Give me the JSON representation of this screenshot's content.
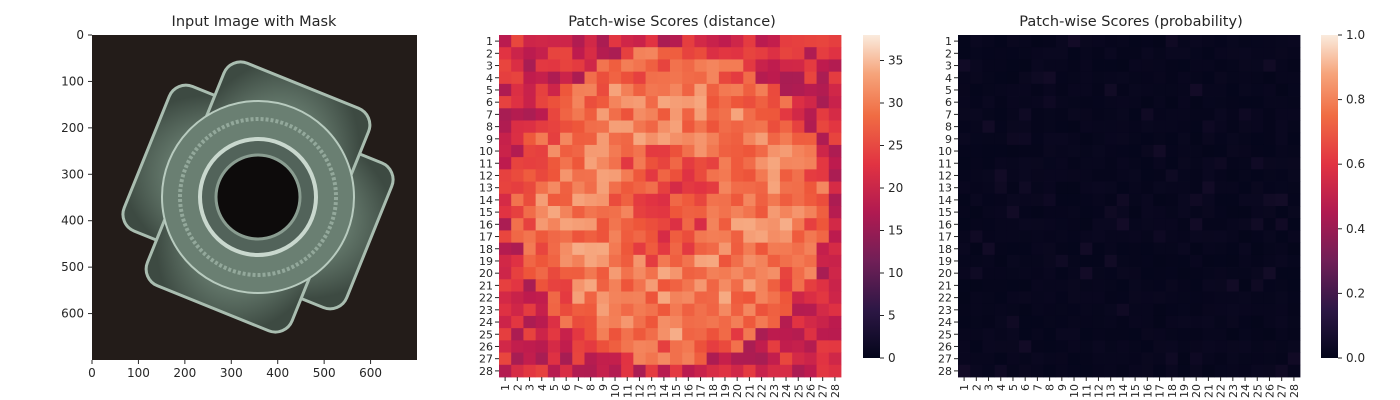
{
  "chart_data": [
    {
      "type": "image",
      "title": "Input Image with Mask",
      "image_description": "metal four-wing part with central hole, seen from above on a dark background",
      "x_ticks": [
        "0",
        "100",
        "200",
        "300",
        "400",
        "500",
        "600"
      ],
      "y_ticks": [
        "0",
        "100",
        "200",
        "300",
        "400",
        "500",
        "600"
      ],
      "xlim": [
        0,
        700
      ],
      "ylim": [
        700,
        0
      ],
      "colors": {
        "background": "#231c19",
        "metal": "#6f8577",
        "hole": "#0d0b0b"
      }
    },
    {
      "type": "heatmap",
      "title": "Patch-wise Scores (distance)",
      "rows": [
        "1",
        "2",
        "3",
        "4",
        "5",
        "6",
        "7",
        "8",
        "9",
        "10",
        "11",
        "12",
        "13",
        "14",
        "15",
        "16",
        "17",
        "18",
        "19",
        "20",
        "21",
        "22",
        "23",
        "24",
        "25",
        "26",
        "27",
        "28"
      ],
      "cols": [
        "1",
        "2",
        "3",
        "4",
        "5",
        "6",
        "7",
        "8",
        "9",
        "10",
        "11",
        "12",
        "13",
        "14",
        "15",
        "16",
        "17",
        "18",
        "19",
        "20",
        "21",
        "22",
        "23",
        "24",
        "25",
        "26",
        "27",
        "28"
      ],
      "colorbar": {
        "min": 0,
        "max": 38,
        "ticks": [
          "0",
          "5",
          "10",
          "15",
          "20",
          "25",
          "30",
          "35"
        ],
        "colormap": "rocket"
      },
      "grid_size": 28
    },
    {
      "type": "heatmap",
      "title": "Patch-wise Scores (probability)",
      "rows": [
        "1",
        "2",
        "3",
        "4",
        "5",
        "6",
        "7",
        "8",
        "9",
        "10",
        "11",
        "12",
        "13",
        "14",
        "15",
        "16",
        "17",
        "18",
        "19",
        "20",
        "21",
        "22",
        "23",
        "24",
        "25",
        "26",
        "27",
        "28"
      ],
      "cols": [
        "1",
        "2",
        "3",
        "4",
        "5",
        "6",
        "7",
        "8",
        "9",
        "10",
        "11",
        "12",
        "13",
        "14",
        "15",
        "16",
        "17",
        "18",
        "19",
        "20",
        "21",
        "22",
        "23",
        "24",
        "25",
        "26",
        "27",
        "28"
      ],
      "colorbar": {
        "min": 0.0,
        "max": 1.0,
        "ticks": [
          "0.0",
          "0.2",
          "0.4",
          "0.6",
          "0.8",
          "1.0"
        ],
        "colormap": "rocket"
      },
      "grid_size": 28
    }
  ]
}
